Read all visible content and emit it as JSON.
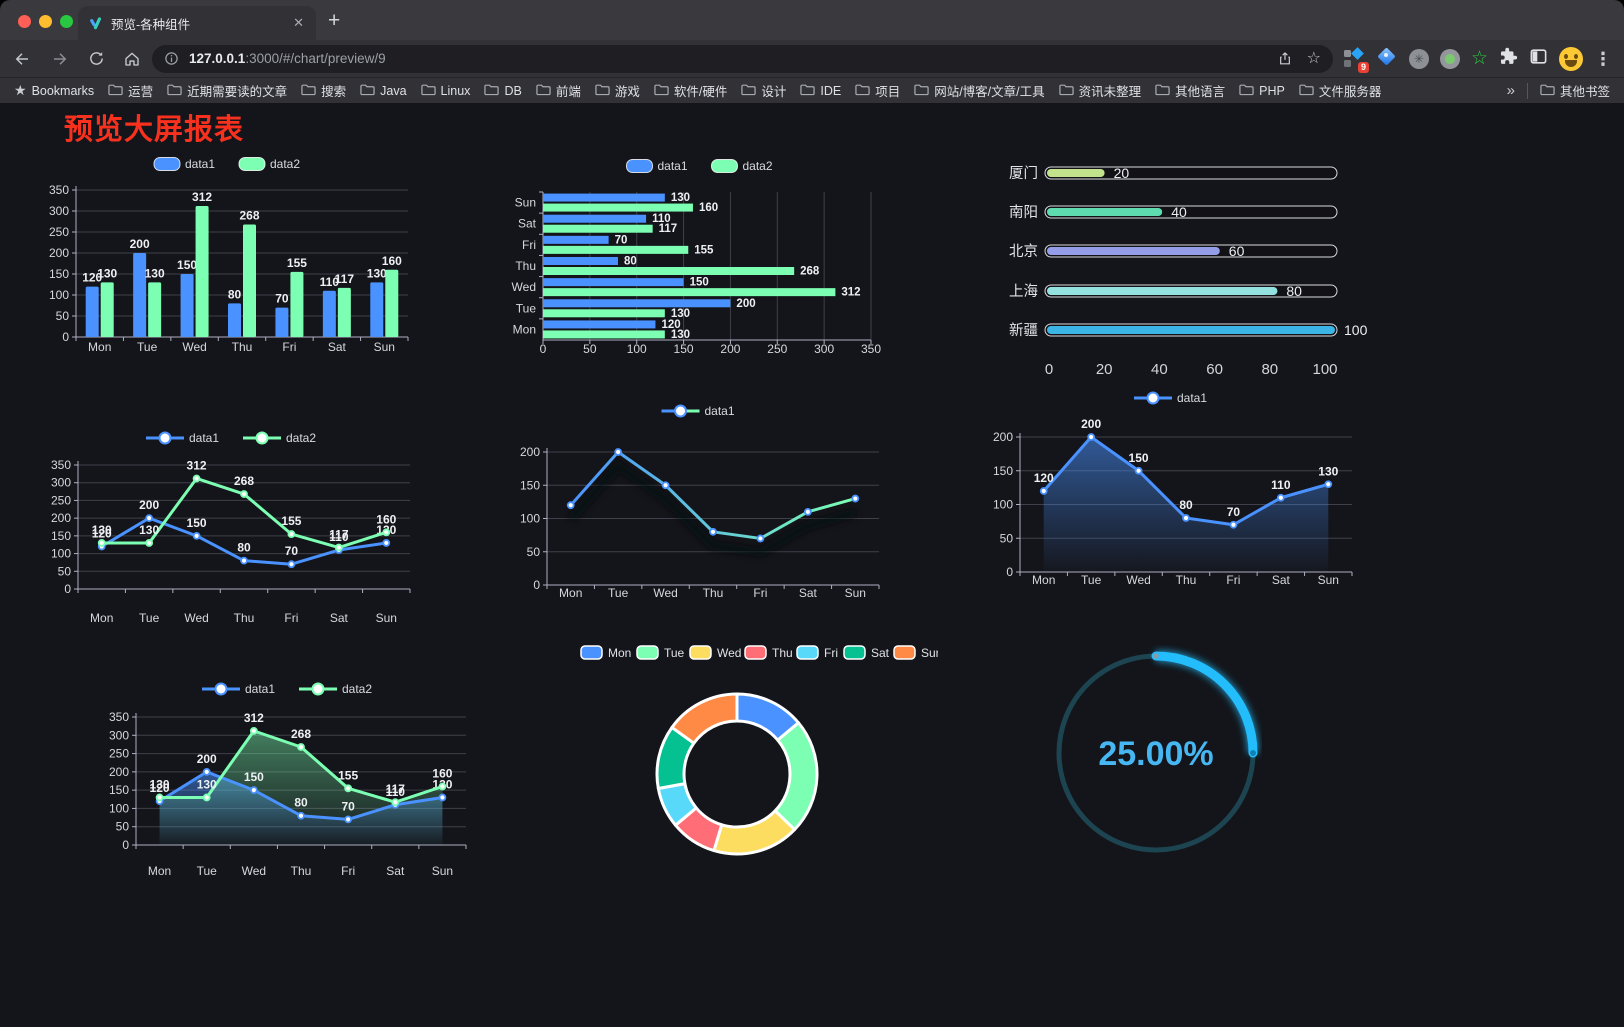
{
  "browser": {
    "tab_title": "预览-各种组件",
    "close_glyph": "✕",
    "new_tab_glyph": "+",
    "url_host": "127.0.0.1",
    "url_path": ":3000/#/chart/preview/9",
    "bookmarks_label": "Bookmarks",
    "bookmark_folders": [
      "运营",
      "近期需要读的文章",
      "搜索",
      "Java",
      "Linux",
      "DB",
      "前端",
      "游戏",
      "软件/硬件",
      "设计",
      "IDE",
      "项目",
      "网站/博客/文章/工具",
      "资讯未整理",
      "其他语言",
      "PHP",
      "文件服务器"
    ],
    "overflow_glyph": "»",
    "other_bookmarks": "其他书签",
    "menu_glyph": "⋮",
    "star_glyph": "☆",
    "doodle_star_glyph": "☆",
    "badge_count": "9"
  },
  "page": {
    "heading": "预览大屏报表",
    "heading_color": "#f8311f",
    "background": "#14151a"
  },
  "palette": {
    "series_blue": "#4992ff",
    "series_green": "#7cffb2",
    "axis_label": "#d5d8de",
    "grid_line": "#3f4049",
    "data_label": "#eef0f3"
  },
  "chart_data": [
    {
      "id": "bar-vertical",
      "type": "bar",
      "categories": [
        "Mon",
        "Tue",
        "Wed",
        "Thu",
        "Fri",
        "Sat",
        "Sun"
      ],
      "series": [
        {
          "name": "data1",
          "color": "#4992ff",
          "values": [
            120,
            200,
            150,
            80,
            70,
            110,
            130
          ]
        },
        {
          "name": "data2",
          "color": "#7cffb2",
          "values": [
            130,
            130,
            312,
            268,
            155,
            117,
            160
          ]
        }
      ],
      "ylim": [
        0,
        350
      ],
      "yticks": [
        0,
        50,
        100,
        150,
        200,
        250,
        300,
        350
      ],
      "legend_position": "top",
      "point_labels": true
    },
    {
      "id": "bar-horizontal",
      "type": "bar-horizontal",
      "categories": [
        "Mon",
        "Tue",
        "Wed",
        "Thu",
        "Fri",
        "Sat",
        "Sun"
      ],
      "series": [
        {
          "name": "data1",
          "color": "#4992ff",
          "values": [
            120,
            200,
            150,
            80,
            70,
            110,
            130
          ]
        },
        {
          "name": "data2",
          "color": "#7cffb2",
          "values": [
            130,
            130,
            312,
            268,
            155,
            117,
            160
          ]
        }
      ],
      "xlim": [
        0,
        350
      ],
      "xticks": [
        0,
        50,
        100,
        150,
        200,
        250,
        300,
        350
      ],
      "legend_position": "top",
      "point_labels": true
    },
    {
      "id": "progress",
      "type": "progress-bars",
      "categories": [
        "厦门",
        "南阳",
        "北京",
        "上海",
        "新疆"
      ],
      "values": [
        20,
        40,
        60,
        80,
        100
      ],
      "colors": [
        "#c2e38c",
        "#5fdbb0",
        "#949ee8",
        "#93e2e0",
        "#3ab5e5"
      ],
      "xlim": [
        0,
        100
      ],
      "xticks": [
        0,
        20,
        40,
        60,
        80,
        100
      ]
    },
    {
      "id": "line-two",
      "type": "line",
      "categories": [
        "Mon",
        "Tue",
        "Wed",
        "Thu",
        "Fri",
        "Sat",
        "Sun"
      ],
      "series": [
        {
          "name": "data1",
          "color": "#4992ff",
          "values": [
            120,
            200,
            150,
            80,
            70,
            110,
            130
          ]
        },
        {
          "name": "data2",
          "color": "#7cffb2",
          "values": [
            130,
            130,
            312,
            268,
            155,
            117,
            160
          ]
        }
      ],
      "ylim": [
        0,
        350
      ],
      "yticks": [
        0,
        50,
        100,
        150,
        200,
        250,
        300,
        350
      ],
      "legend_position": "top",
      "point_labels": true
    },
    {
      "id": "line-gradient",
      "type": "line",
      "categories": [
        "Mon",
        "Tue",
        "Wed",
        "Thu",
        "Fri",
        "Sat",
        "Sun"
      ],
      "series": [
        {
          "name": "data1",
          "color": "#4992ff",
          "gradient": [
            "#4992ff",
            "#7cffb2"
          ],
          "values": [
            120,
            200,
            150,
            80,
            70,
            110,
            130
          ]
        }
      ],
      "ylim": [
        0,
        200
      ],
      "yticks": [
        0,
        50,
        100,
        150,
        200
      ],
      "legend_position": "top",
      "point_labels": false,
      "shadow": true
    },
    {
      "id": "area-single",
      "type": "area",
      "categories": [
        "Mon",
        "Tue",
        "Wed",
        "Thu",
        "Fri",
        "Sat",
        "Sun"
      ],
      "series": [
        {
          "name": "data1",
          "color": "#4992ff",
          "area": true,
          "values": [
            120,
            200,
            150,
            80,
            70,
            110,
            130
          ]
        }
      ],
      "ylim": [
        0,
        200
      ],
      "yticks": [
        0,
        50,
        100,
        150,
        200
      ],
      "legend_position": "top",
      "point_labels": true
    },
    {
      "id": "area-two",
      "type": "area",
      "categories": [
        "Mon",
        "Tue",
        "Wed",
        "Thu",
        "Fri",
        "Sat",
        "Sun"
      ],
      "series": [
        {
          "name": "data1",
          "color": "#4992ff",
          "area": true,
          "values": [
            120,
            200,
            150,
            80,
            70,
            110,
            130
          ]
        },
        {
          "name": "data2",
          "color": "#7cffb2",
          "area": true,
          "values": [
            130,
            130,
            312,
            268,
            155,
            117,
            160
          ]
        }
      ],
      "ylim": [
        0,
        350
      ],
      "yticks": [
        0,
        50,
        100,
        150,
        200,
        250,
        300,
        350
      ],
      "legend_position": "top",
      "point_labels": true
    },
    {
      "id": "donut",
      "type": "pie",
      "categories": [
        "Mon",
        "Tue",
        "Wed",
        "Thu",
        "Fri",
        "Sat",
        "Sun"
      ],
      "values": [
        120,
        200,
        150,
        80,
        70,
        110,
        130
      ],
      "colors": [
        "#4992ff",
        "#7cffb2",
        "#fddd60",
        "#ff6e76",
        "#58d9f9",
        "#05c091",
        "#ff8a45"
      ],
      "inner_radius_ratio": 0.66,
      "legend_position": "top"
    },
    {
      "id": "gauge",
      "type": "gauge",
      "value": 25,
      "label": "25.00%",
      "color": "#24bdfc",
      "track_color": "#1d4551",
      "text_color": "#47b7f3"
    }
  ]
}
